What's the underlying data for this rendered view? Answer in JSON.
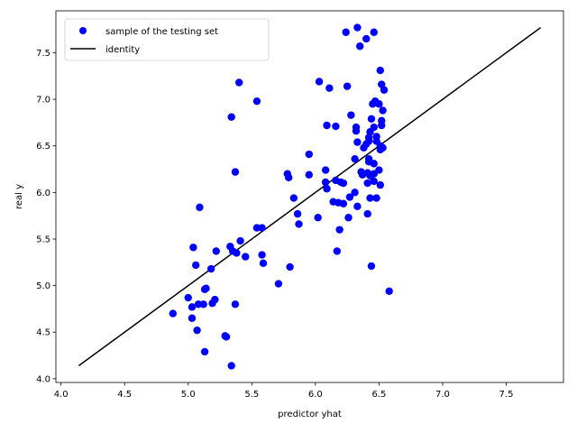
{
  "chart_data": {
    "type": "scatter",
    "title": "",
    "xlabel": "predictor yhat",
    "ylabel": "real y",
    "xlim": [
      3.96,
      7.95
    ],
    "ylim": [
      3.96,
      7.95
    ],
    "xticks": [
      4.0,
      4.5,
      5.0,
      5.5,
      6.0,
      6.5,
      7.0,
      7.5
    ],
    "yticks": [
      4.0,
      4.5,
      5.0,
      5.5,
      6.0,
      6.5,
      7.0,
      7.5
    ],
    "xtick_labels": [
      "4.0",
      "4.5",
      "5.0",
      "5.5",
      "6.0",
      "6.5",
      "7.0",
      "7.5"
    ],
    "ytick_labels": [
      "4.0",
      "4.5",
      "5.0",
      "5.5",
      "6.0",
      "6.5",
      "7.0",
      "7.5"
    ],
    "grid": false,
    "legend": {
      "placement": "upper-left"
    },
    "series": [
      {
        "name": "sample of the testing set",
        "kind": "scatter",
        "color": "#0000ff",
        "marker": "circle",
        "points": [
          [
            6.33,
            7.77
          ],
          [
            6.24,
            7.72
          ],
          [
            6.46,
            7.72
          ],
          [
            6.4,
            7.65
          ],
          [
            6.35,
            7.57
          ],
          [
            6.51,
            7.31
          ],
          [
            5.4,
            7.18
          ],
          [
            6.03,
            7.19
          ],
          [
            6.11,
            7.12
          ],
          [
            6.25,
            7.14
          ],
          [
            6.52,
            7.16
          ],
          [
            6.54,
            7.1
          ],
          [
            5.54,
            6.98
          ],
          [
            6.47,
            6.98
          ],
          [
            6.45,
            6.95
          ],
          [
            6.5,
            6.95
          ],
          [
            6.53,
            6.88
          ],
          [
            5.34,
            6.81
          ],
          [
            6.28,
            6.83
          ],
          [
            6.44,
            6.79
          ],
          [
            6.52,
            6.77
          ],
          [
            6.09,
            6.72
          ],
          [
            6.16,
            6.71
          ],
          [
            6.32,
            6.7
          ],
          [
            6.32,
            6.66
          ],
          [
            6.46,
            6.7
          ],
          [
            6.52,
            6.72
          ],
          [
            6.43,
            6.65
          ],
          [
            6.42,
            6.59
          ],
          [
            6.48,
            6.6
          ],
          [
            6.33,
            6.54
          ],
          [
            6.4,
            6.52
          ],
          [
            6.38,
            6.48
          ],
          [
            6.42,
            6.55
          ],
          [
            6.48,
            6.55
          ],
          [
            6.51,
            6.5
          ],
          [
            6.53,
            6.48
          ],
          [
            6.51,
            6.46
          ],
          [
            5.95,
            6.41
          ],
          [
            6.31,
            6.36
          ],
          [
            6.42,
            6.36
          ],
          [
            6.42,
            6.33
          ],
          [
            6.46,
            6.31
          ],
          [
            5.37,
            6.22
          ],
          [
            5.78,
            6.2
          ],
          [
            5.79,
            6.16
          ],
          [
            5.95,
            6.19
          ],
          [
            6.08,
            6.24
          ],
          [
            6.36,
            6.22
          ],
          [
            6.37,
            6.19
          ],
          [
            6.41,
            6.21
          ],
          [
            6.43,
            6.18
          ],
          [
            6.46,
            6.2
          ],
          [
            6.5,
            6.24
          ],
          [
            6.08,
            6.11
          ],
          [
            6.09,
            6.04
          ],
          [
            6.16,
            6.13
          ],
          [
            6.2,
            6.11
          ],
          [
            6.22,
            6.1
          ],
          [
            6.41,
            6.1
          ],
          [
            6.46,
            6.12
          ],
          [
            6.51,
            6.08
          ],
          [
            5.83,
            5.94
          ],
          [
            6.27,
            5.95
          ],
          [
            6.31,
            6.0
          ],
          [
            6.43,
            5.94
          ],
          [
            6.48,
            5.94
          ],
          [
            5.09,
            5.84
          ],
          [
            6.14,
            5.9
          ],
          [
            6.18,
            5.89
          ],
          [
            6.22,
            5.88
          ],
          [
            6.33,
            5.85
          ],
          [
            5.86,
            5.77
          ],
          [
            6.02,
            5.73
          ],
          [
            6.26,
            5.73
          ],
          [
            6.41,
            5.77
          ],
          [
            5.87,
            5.66
          ],
          [
            5.54,
            5.62
          ],
          [
            5.58,
            5.62
          ],
          [
            6.19,
            5.6
          ],
          [
            5.41,
            5.48
          ],
          [
            5.04,
            5.41
          ],
          [
            5.33,
            5.42
          ],
          [
            5.22,
            5.37
          ],
          [
            5.35,
            5.37
          ],
          [
            5.38,
            5.35
          ],
          [
            6.17,
            5.37
          ],
          [
            5.45,
            5.31
          ],
          [
            5.58,
            5.33
          ],
          [
            5.59,
            5.24
          ],
          [
            5.06,
            5.22
          ],
          [
            5.18,
            5.18
          ],
          [
            5.8,
            5.2
          ],
          [
            6.44,
            5.21
          ],
          [
            5.71,
            5.02
          ],
          [
            5.13,
            4.96
          ],
          [
            5.14,
            4.97
          ],
          [
            6.58,
            4.94
          ],
          [
            5.0,
            4.87
          ],
          [
            5.21,
            4.85
          ],
          [
            5.03,
            4.77
          ],
          [
            5.08,
            4.8
          ],
          [
            5.12,
            4.8
          ],
          [
            5.19,
            4.81
          ],
          [
            5.37,
            4.8
          ],
          [
            5.03,
            4.65
          ],
          [
            4.88,
            4.7
          ],
          [
            5.07,
            4.52
          ],
          [
            5.29,
            4.46
          ],
          [
            5.3,
            4.45
          ],
          [
            5.13,
            4.29
          ],
          [
            5.34,
            4.14
          ]
        ]
      },
      {
        "name": "identity",
        "kind": "line",
        "color": "#000000",
        "points": [
          [
            4.14,
            4.14
          ],
          [
            7.77,
            7.77
          ]
        ]
      }
    ]
  }
}
